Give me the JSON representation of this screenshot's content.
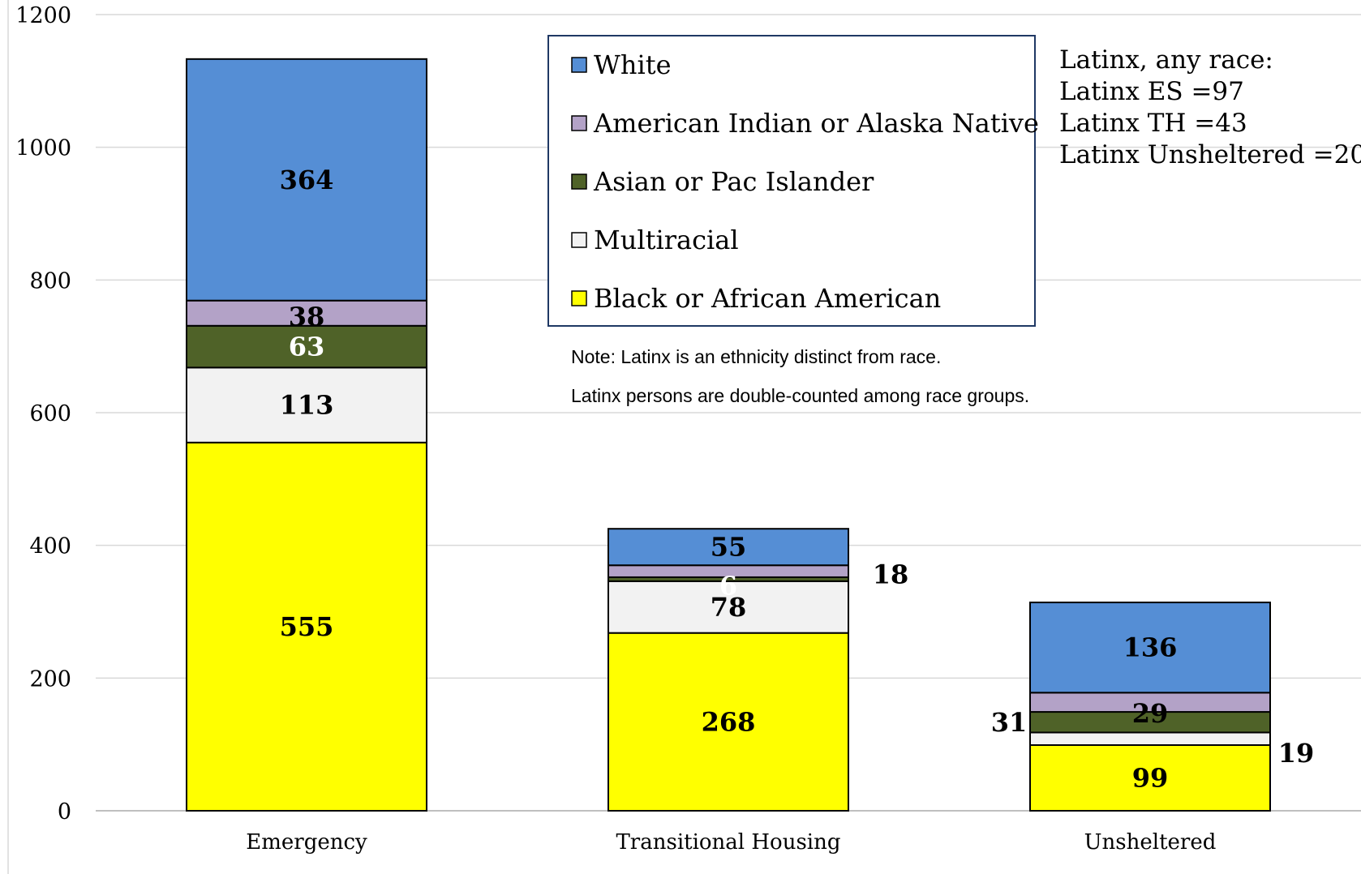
{
  "chart_data": {
    "type": "bar",
    "stacked": true,
    "categories": [
      "Emergency",
      "Transitional Housing",
      "Unsheltered"
    ],
    "ylim": [
      0,
      1200
    ],
    "yticks": [
      "0",
      "200",
      "400",
      "600",
      "800",
      "1000",
      "1200"
    ],
    "grid": true,
    "legend_position": "top-center",
    "series": [
      {
        "name": "Black or African American",
        "color": "#FFFF00",
        "label_color": "#000000",
        "values": [
          555,
          268,
          99
        ]
      },
      {
        "name": "Multiracial",
        "color": "#F2F2F2",
        "label_color": "#000000",
        "values": [
          113,
          78,
          19
        ]
      },
      {
        "name": "Asian or Pac Islander",
        "color": "#4F6228",
        "label_color": "#FFFFFF",
        "values": [
          63,
          6,
          31
        ]
      },
      {
        "name": "American Indian or Alaska Native",
        "color": "#B3A2C7",
        "label_color": "#000000",
        "values": [
          38,
          18,
          29
        ]
      },
      {
        "name": "White",
        "color": "#558ED5",
        "label_color": "#000000",
        "values": [
          364,
          55,
          136
        ]
      }
    ],
    "legend_order": [
      "White",
      "American Indian or Alaska Native",
      "Asian or Pac Islander",
      "Multiracial",
      "Black or African American"
    ],
    "notes": [
      "Note: Latinx is an ethnicity distinct from race.",
      "Latinx persons are double-counted among race groups."
    ],
    "annotation_lines": [
      "Latinx, any race:",
      "Latinx ES =97",
      "Latinx TH =43",
      "Latinx Unsheltered =20"
    ]
  }
}
